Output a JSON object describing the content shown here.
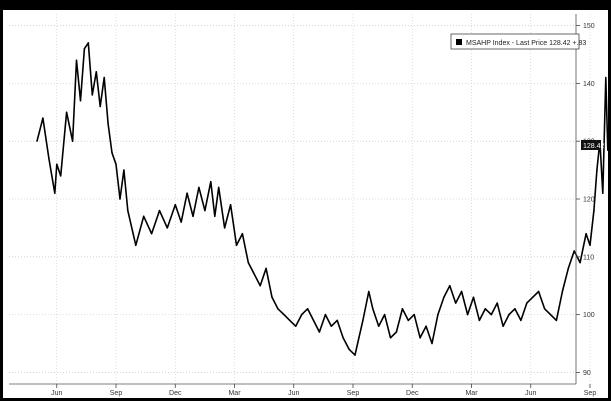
{
  "chart_data": {
    "type": "line",
    "legend": "MSAHP Index - Last Price 128.42 +.83",
    "legend_position": "top-right",
    "last_value_label": "128.42",
    "grid": true,
    "ylim": [
      88,
      152
    ],
    "yticks": [
      90,
      100,
      110,
      120,
      130,
      140,
      150
    ],
    "xlim": [
      0,
      28
    ],
    "xticks": [
      {
        "label": "Jun",
        "x": 1
      },
      {
        "label": "Sep",
        "x": 4
      },
      {
        "label": "Dec",
        "x": 7
      },
      {
        "label": "Mar",
        "x": 10
      },
      {
        "label": "Jun",
        "x": 13
      },
      {
        "label": "Sep",
        "x": 16
      },
      {
        "label": "Dec",
        "x": 19
      },
      {
        "label": "Mar",
        "x": 22
      },
      {
        "label": "Jun",
        "x": 25
      },
      {
        "label": "Sep",
        "x": 28
      }
    ],
    "series": [
      {
        "color": "#000000",
        "x": [
          0,
          0.3,
          0.6,
          0.9,
          1.0,
          1.2,
          1.5,
          1.8,
          2.0,
          2.2,
          2.4,
          2.6,
          2.8,
          3.0,
          3.2,
          3.4,
          3.6,
          3.8,
          4.0,
          4.2,
          4.4,
          4.6,
          5.0,
          5.4,
          5.8,
          6.2,
          6.6,
          7.0,
          7.3,
          7.6,
          7.9,
          8.2,
          8.5,
          8.8,
          9.0,
          9.2,
          9.5,
          9.8,
          10.1,
          10.4,
          10.7,
          11.0,
          11.3,
          11.6,
          11.9,
          12.2,
          12.5,
          12.8,
          13.1,
          13.4,
          13.7,
          14.0,
          14.3,
          14.6,
          14.9,
          15.2,
          15.5,
          15.8,
          16.1,
          16.3,
          16.5,
          16.8,
          17.0,
          17.3,
          17.6,
          17.9,
          18.2,
          18.5,
          18.8,
          19.1,
          19.4,
          19.7,
          20.0,
          20.3,
          20.6,
          20.9,
          21.2,
          21.5,
          21.8,
          22.1,
          22.4,
          22.7,
          23.0,
          23.3,
          23.6,
          23.9,
          24.2,
          24.5,
          24.8,
          25.1,
          25.4,
          25.7,
          26.0,
          26.3,
          26.6,
          26.9,
          27.2,
          27.5,
          27.8,
          28.0,
          28.2,
          28.35,
          28.5,
          28.65,
          28.8,
          28.9
        ],
        "y": [
          130,
          134,
          127,
          121,
          126,
          124,
          135,
          130,
          144,
          137,
          146,
          147,
          138,
          142,
          136,
          141,
          133,
          128,
          126,
          120,
          125,
          118,
          112,
          117,
          114,
          118,
          115,
          119,
          116,
          121,
          117,
          122,
          118,
          123,
          117,
          122,
          115,
          119,
          112,
          114,
          109,
          107,
          105,
          108,
          103,
          101,
          100,
          99,
          98,
          100,
          101,
          99,
          97,
          100,
          98,
          99,
          96,
          94,
          93,
          96,
          99,
          104,
          101,
          98,
          100,
          96,
          97,
          101,
          99,
          100,
          96,
          98,
          95,
          100,
          103,
          105,
          102,
          104,
          100,
          103,
          99,
          101,
          100,
          102,
          98,
          100,
          101,
          99,
          102,
          103,
          104,
          101,
          100,
          99,
          104,
          108,
          111,
          109,
          114,
          112,
          118,
          125,
          130,
          121,
          141,
          128.42
        ]
      }
    ]
  }
}
